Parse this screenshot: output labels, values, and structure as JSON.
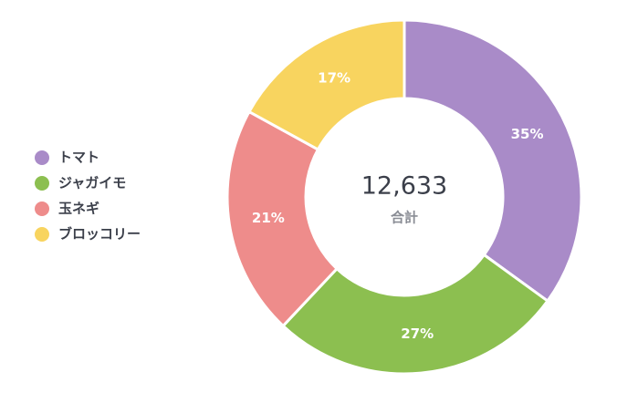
{
  "chart_data": {
    "type": "donut",
    "categories": [
      "トマト",
      "ジャガイモ",
      "玉ネギ",
      "ブロッコリー"
    ],
    "values": [
      35,
      27,
      21,
      17
    ],
    "value_labels": [
      "35%",
      "27%",
      "21%",
      "17%"
    ],
    "colors": [
      "#a98bc8",
      "#8cbf50",
      "#ee8c8b",
      "#f8d45f"
    ],
    "center_value": "12,633",
    "center_label": "合計",
    "legend": "left"
  }
}
